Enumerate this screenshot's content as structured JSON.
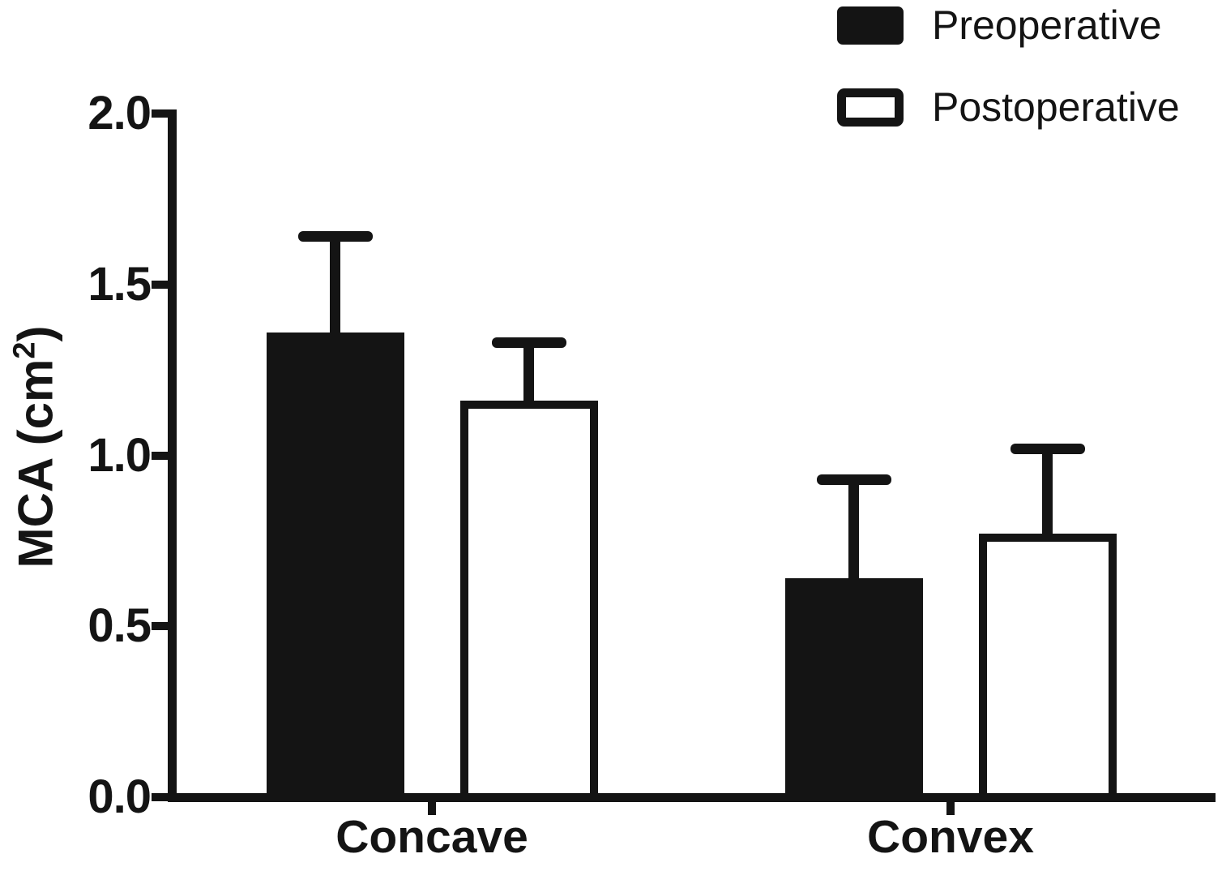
{
  "figure": {
    "background": "#ffffff",
    "ink": "#141414"
  },
  "y_axis": {
    "label_prefix": "MCA (cm",
    "label_sup": "2",
    "label_suffix": ")",
    "tick_labels": [
      "0.0",
      "0.5",
      "1.0",
      "1.5",
      "2.0"
    ]
  },
  "legend": {
    "items": [
      {
        "label": "Preoperative",
        "swatch": "filled-black-rect"
      },
      {
        "label": "Postoperative",
        "swatch": "outlined-white-rect"
      }
    ]
  },
  "chart_data": {
    "type": "bar",
    "title": "",
    "xlabel": "",
    "ylabel": "MCA (cm^2)",
    "categories": [
      "Concave",
      "Convex"
    ],
    "series": [
      {
        "name": "Preoperative",
        "fill": "black",
        "values": [
          1.36,
          0.64
        ],
        "errors_upper": [
          0.28,
          0.29
        ]
      },
      {
        "name": "Postoperative",
        "fill": "white",
        "values": [
          1.16,
          0.77
        ],
        "errors_upper": [
          0.17,
          0.25
        ]
      }
    ],
    "ylim": [
      0,
      2.0
    ],
    "yticks": [
      0.0,
      0.5,
      1.0,
      1.5,
      2.0
    ],
    "grid": false,
    "legend_position": "top-right",
    "error_bars": "upper-only"
  }
}
